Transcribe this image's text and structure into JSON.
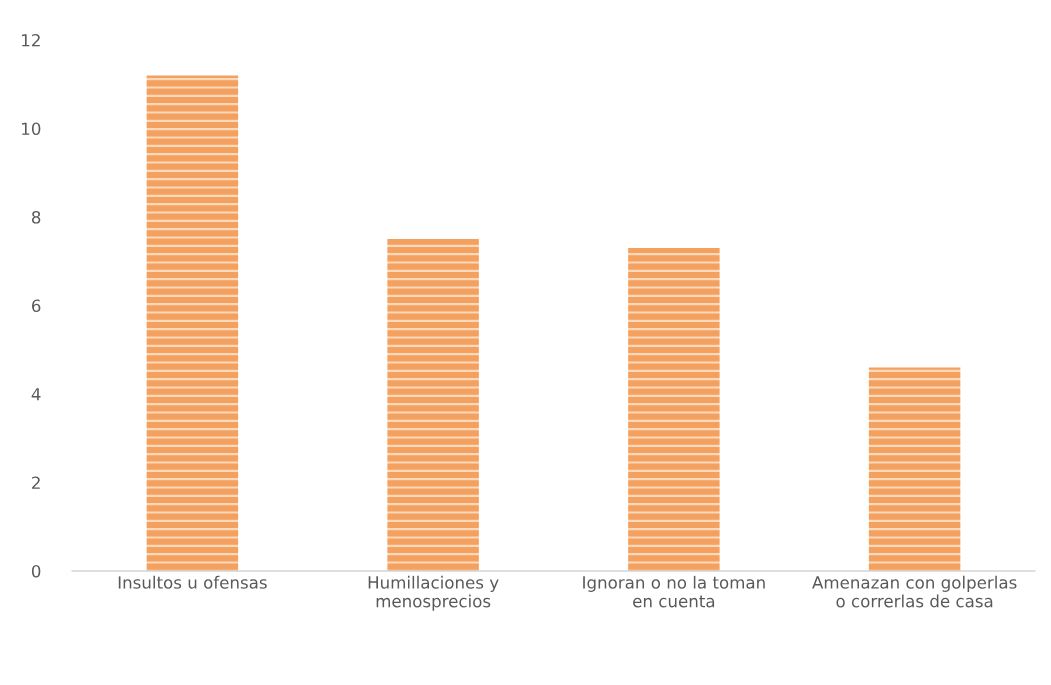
{
  "chart_data": {
    "type": "bar",
    "categories": [
      "Insultos u ofensas",
      "Humillaciones y menosprecios",
      "Ignoran o no la toman en cuenta",
      "Amenazan con golperlas o correrlas de casa"
    ],
    "values": [
      11.2,
      7.5,
      7.3,
      4.6
    ],
    "color": "#f4a05e",
    "ylim": [
      0,
      12
    ],
    "yticks": [
      0,
      2,
      4,
      6,
      8,
      10,
      12
    ],
    "grid": false
  }
}
